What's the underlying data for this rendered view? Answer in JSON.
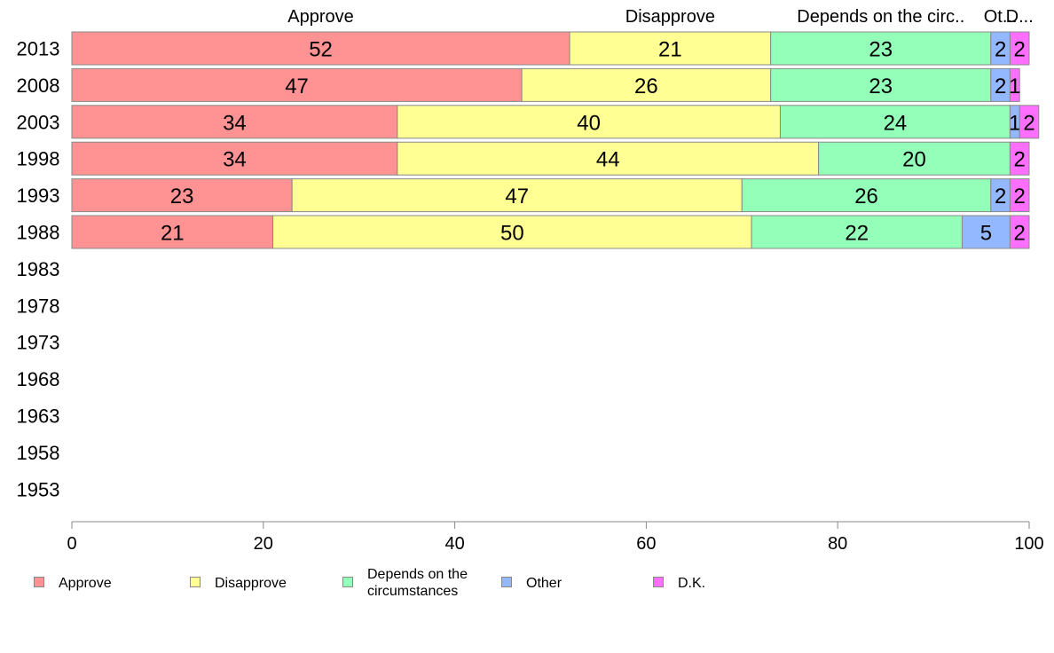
{
  "colors": {
    "Approve": "#ff9393",
    "Disapprove": "#ffff93",
    "Depends on the circumstances": "#93ffb8",
    "Other": "#93b8ff",
    "D.K.": "#ff6fff",
    "axis": "#888888",
    "bar_border": "#888888"
  },
  "legend": {
    "items": [
      {
        "label": "Approve",
        "key": "Approve"
      },
      {
        "label": "Disapprove",
        "key": "Disapprove"
      },
      {
        "label": "Depends on the\ncircumstances",
        "key": "Depends on the circumstances"
      },
      {
        "label": "Other",
        "key": "Other"
      },
      {
        "label": "D.K.",
        "key": "D.K."
      }
    ]
  },
  "chart_data": {
    "type": "bar",
    "orientation": "horizontal",
    "stacked": true,
    "categories": [
      "2013",
      "2008",
      "2003",
      "1998",
      "1993",
      "1988",
      "1983",
      "1978",
      "1973",
      "1968",
      "1963",
      "1958",
      "1953"
    ],
    "column_headers": [
      "Approve",
      "Disapprove",
      "Depends on the circ..",
      "Ot...",
      "D..."
    ],
    "series": [
      {
        "name": "Approve",
        "values": [
          52,
          47,
          34,
          34,
          23,
          21,
          null,
          null,
          null,
          null,
          null,
          null,
          null
        ]
      },
      {
        "name": "Disapprove",
        "values": [
          21,
          26,
          40,
          44,
          47,
          50,
          null,
          null,
          null,
          null,
          null,
          null,
          null
        ]
      },
      {
        "name": "Depends on the circumstances",
        "values": [
          23,
          23,
          24,
          20,
          26,
          22,
          null,
          null,
          null,
          null,
          null,
          null,
          null
        ]
      },
      {
        "name": "Other",
        "values": [
          2,
          2,
          1,
          0,
          2,
          5,
          null,
          null,
          null,
          null,
          null,
          null,
          null
        ]
      },
      {
        "name": "D.K.",
        "values": [
          2,
          1,
          2,
          2,
          2,
          2,
          null,
          null,
          null,
          null,
          null,
          null,
          null
        ]
      }
    ],
    "xlim": [
      0,
      100
    ],
    "xticks": [
      "0",
      "20",
      "40",
      "60",
      "80",
      "100"
    ],
    "legend_position": "bottom",
    "grid": false
  }
}
